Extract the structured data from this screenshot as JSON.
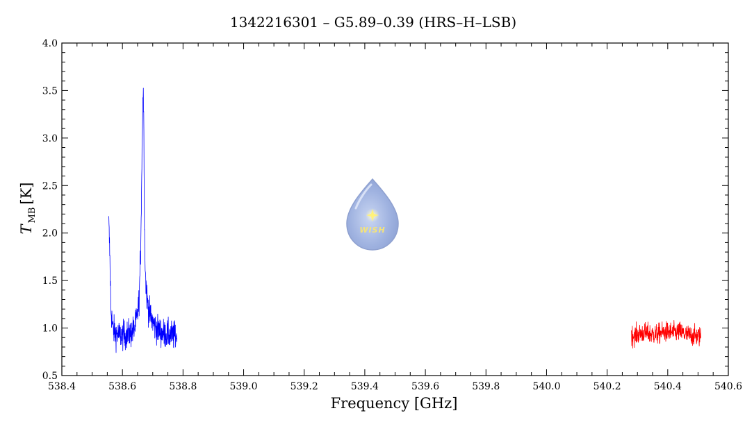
{
  "chart_data": {
    "type": "line",
    "title": "1342216301 – G5.89–0.39 (HRS–H–LSB)",
    "xlabel": "Frequency [GHz]",
    "ylabel_main": "T",
    "ylabel_sub": "MB",
    "ylabel_unit": "[K]",
    "xlim": [
      538.4,
      540.6
    ],
    "ylim": [
      0.5,
      4.0
    ],
    "xticks": [
      "538.4",
      "538.6",
      "538.8",
      "539.0",
      "539.2",
      "539.4",
      "539.6",
      "539.8",
      "540.0",
      "540.2",
      "540.4",
      "540.6"
    ],
    "yticks": [
      "0.5",
      "1.0",
      "1.5",
      "2.0",
      "2.5",
      "3.0",
      "3.5",
      "4.0"
    ],
    "grid": false,
    "series": [
      {
        "color": "#0000ff",
        "x": [
          538.555,
          538.558,
          538.562,
          538.568,
          538.575,
          538.585,
          538.6,
          538.615,
          538.63,
          538.64,
          538.648,
          538.655,
          538.66,
          538.664,
          538.667,
          538.669,
          538.671,
          538.673,
          538.676,
          538.68,
          538.686,
          538.695,
          538.71,
          538.73,
          538.75,
          538.765,
          538.78
        ],
        "y": [
          2.1,
          1.8,
          1.2,
          1.0,
          0.95,
          0.93,
          0.92,
          0.93,
          0.95,
          1.0,
          1.1,
          1.3,
          1.8,
          2.7,
          3.4,
          3.5,
          3.0,
          2.0,
          1.55,
          1.35,
          1.2,
          1.1,
          1.0,
          0.95,
          0.93,
          0.92,
          0.92
        ]
      },
      {
        "color": "#ff0000",
        "x": [
          540.28,
          540.3,
          540.32,
          540.34,
          540.36,
          540.38,
          540.4,
          540.42,
          540.44,
          540.46,
          540.48,
          540.51
        ],
        "y": [
          0.92,
          0.93,
          0.95,
          0.94,
          0.93,
          0.95,
          0.96,
          0.95,
          0.96,
          0.93,
          0.92,
          0.91
        ]
      }
    ],
    "noise_amplitude": [
      0.17,
      0.12
    ]
  },
  "logo": {
    "text": "WISH",
    "x": 539.43,
    "y": 2.1
  }
}
